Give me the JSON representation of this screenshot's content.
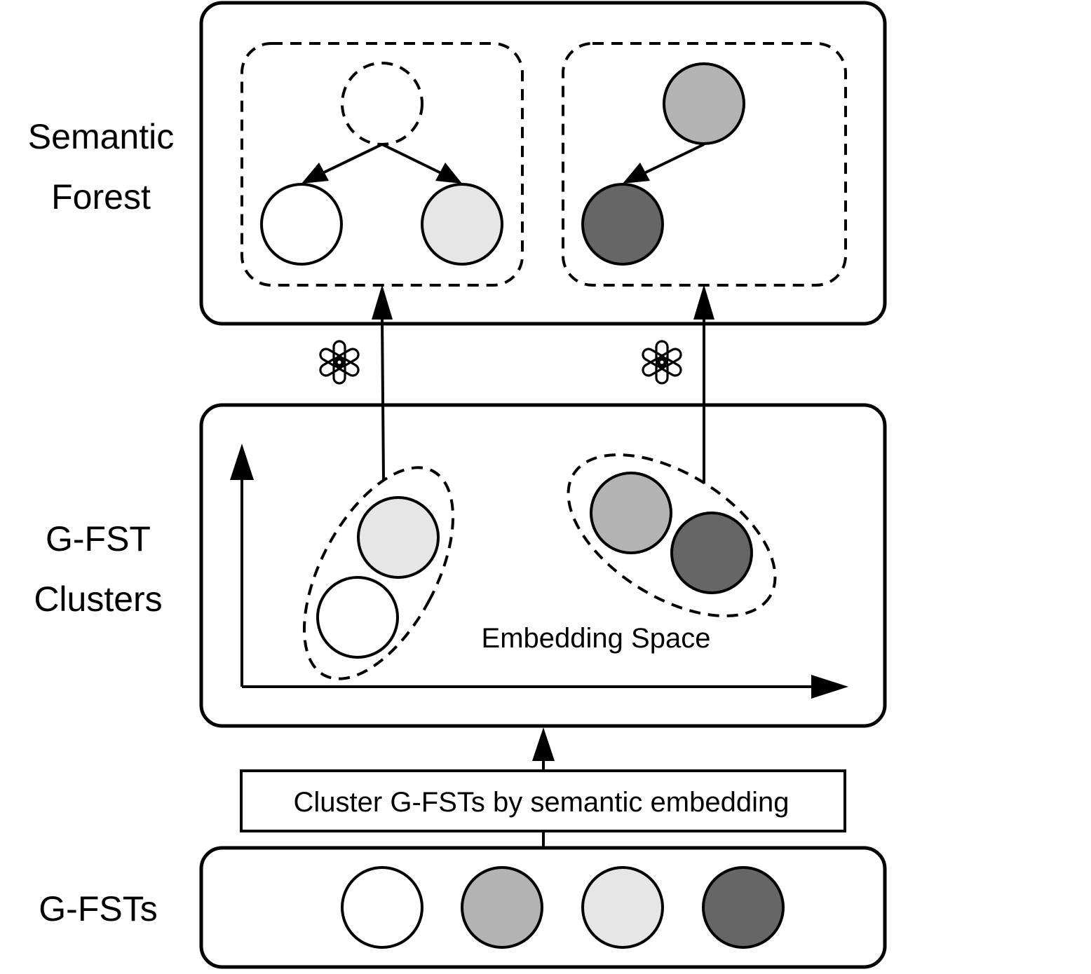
{
  "labels": {
    "semantic_forest_line1": "Semantic",
    "semantic_forest_line2": "Forest",
    "gfst_clusters_line1": "G-FST",
    "gfst_clusters_line2": "Clusters",
    "gfsts": "G-FSTs",
    "embedding_space": "Embedding Space",
    "cluster_step": "Cluster G-FSTs by semantic embedding"
  },
  "icons": {
    "llm": "openai-logo-icon"
  },
  "colors": {
    "white_node": "#ffffff",
    "light_gray_node": "#e6e6e6",
    "mid_gray_node": "#b3b3b3",
    "dark_gray_node": "#666666",
    "stroke": "#000000"
  }
}
